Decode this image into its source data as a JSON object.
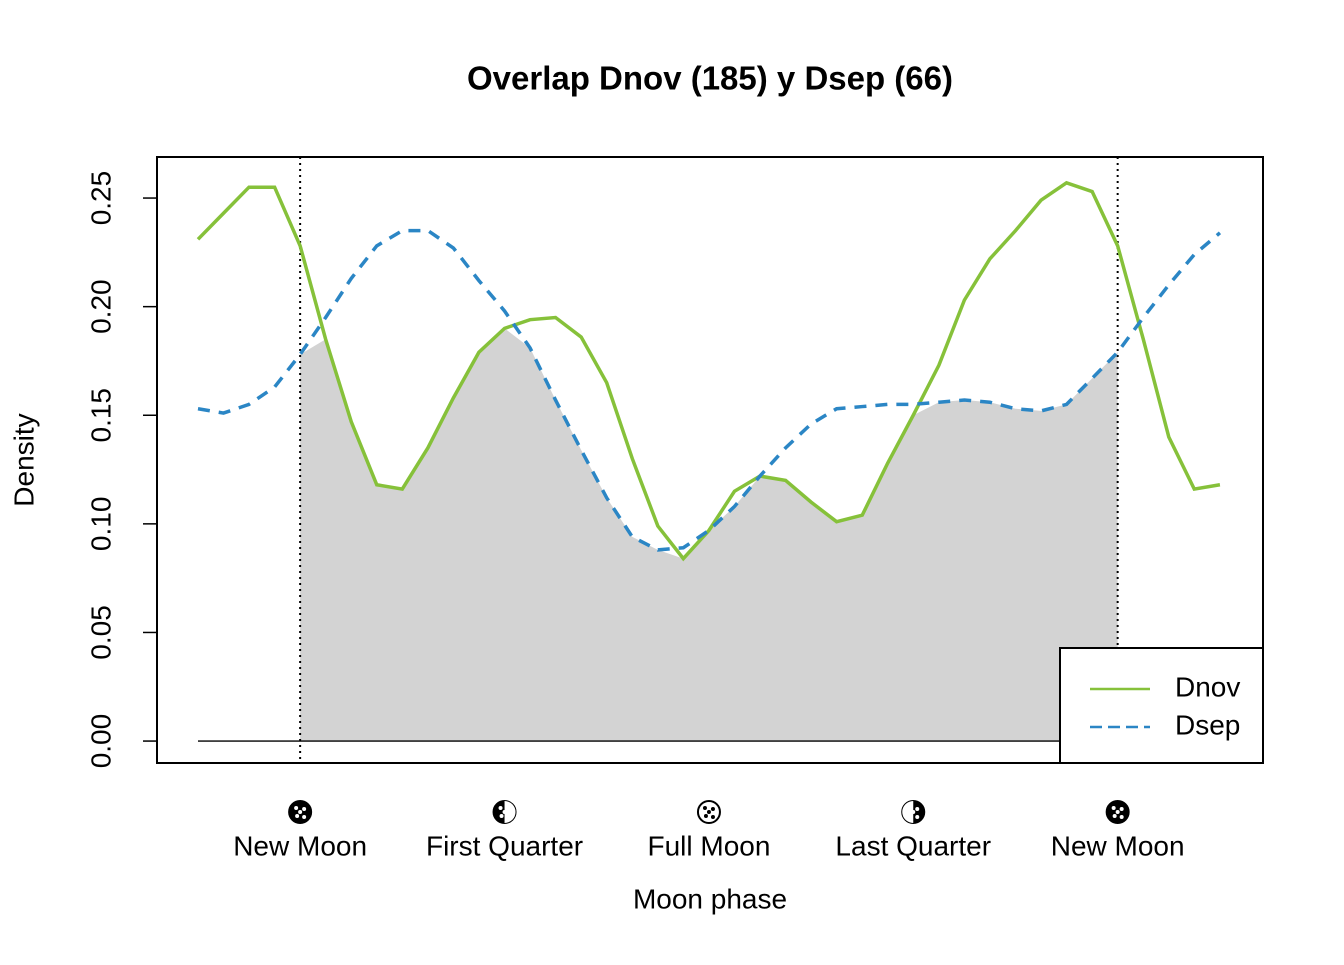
{
  "chart_data": {
    "type": "line",
    "title": "Overlap Dnov (185) y Dsep (66)",
    "xlabel": "Moon phase",
    "ylabel": "Density",
    "x": [
      -0.785,
      -0.589,
      -0.393,
      -0.196,
      0,
      0.196,
      0.393,
      0.589,
      0.785,
      0.982,
      1.178,
      1.374,
      1.571,
      1.767,
      1.963,
      2.16,
      2.356,
      2.553,
      2.749,
      2.945,
      3.142,
      3.338,
      3.534,
      3.731,
      3.927,
      4.123,
      4.32,
      4.516,
      4.712,
      4.909,
      5.105,
      5.301,
      5.498,
      5.694,
      5.89,
      6.087,
      6.283,
      6.48,
      6.676,
      6.872,
      7.069
    ],
    "series": [
      {
        "name": "Dnov",
        "color": "#86c13a",
        "linestyle": "solid",
        "values": [
          0.231,
          0.243,
          0.255,
          0.255,
          0.228,
          0.185,
          0.147,
          0.118,
          0.116,
          0.135,
          0.158,
          0.179,
          0.19,
          0.194,
          0.195,
          0.186,
          0.165,
          0.13,
          0.099,
          0.084,
          0.097,
          0.115,
          0.122,
          0.12,
          0.11,
          0.101,
          0.104,
          0.128,
          0.15,
          0.173,
          0.203,
          0.222,
          0.235,
          0.249,
          0.257,
          0.253,
          0.228,
          0.185,
          0.14,
          0.116,
          0.118
        ]
      },
      {
        "name": "Dsep",
        "color": "#2b86c5",
        "linestyle": "dashed",
        "values": [
          0.153,
          0.151,
          0.155,
          0.163,
          0.178,
          0.195,
          0.213,
          0.228,
          0.235,
          0.235,
          0.227,
          0.212,
          0.198,
          0.181,
          0.157,
          0.134,
          0.112,
          0.094,
          0.088,
          0.089,
          0.097,
          0.108,
          0.122,
          0.135,
          0.146,
          0.153,
          0.154,
          0.155,
          0.155,
          0.156,
          0.157,
          0.156,
          0.153,
          0.152,
          0.155,
          0.167,
          0.179,
          0.195,
          0.21,
          0.224,
          0.234
        ]
      }
    ],
    "xlim": [
      -1.1,
      7.4
    ],
    "xticks": [
      {
        "value": 0,
        "label": "New Moon"
      },
      {
        "value": 1.571,
        "label": "First Quarter"
      },
      {
        "value": 3.142,
        "label": "Full Moon"
      },
      {
        "value": 4.712,
        "label": "Last Quarter"
      },
      {
        "value": 6.283,
        "label": "New Moon"
      }
    ],
    "ylim": [
      -0.0101,
      0.2689
    ],
    "yticks": [
      {
        "value": 0,
        "label": "0.00"
      },
      0.05,
      {
        "value": 0.1,
        "label": "0.10"
      },
      0.15,
      {
        "value": 0.2,
        "label": "0.20"
      },
      0.25
    ],
    "overlap_color": "#d3d3d3",
    "legend": "bottomright"
  }
}
